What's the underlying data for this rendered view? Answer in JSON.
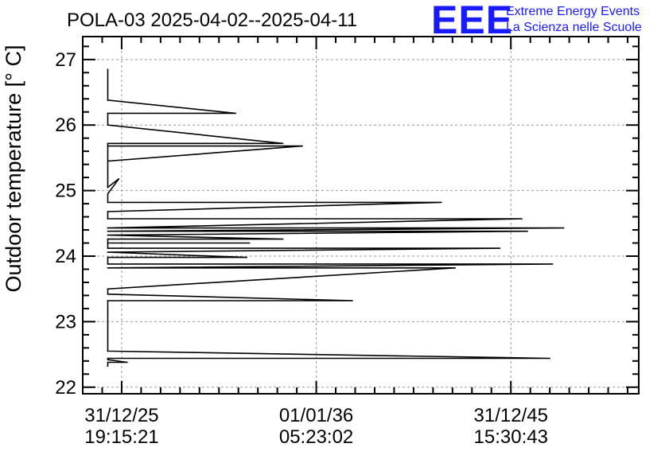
{
  "chart_data": {
    "type": "line",
    "title": "POLA-03 2025-04-02--2025-04-11",
    "logo": {
      "mark": "EEE",
      "line1": "Extreme Energy Events",
      "line2": "La Scienza nelle Scuole"
    },
    "ylabel": "Outdoor temperature [° C]",
    "xlabel": "",
    "ylim": [
      21.9,
      27.35
    ],
    "xlim": [
      0,
      100
    ],
    "yticks": [
      "22",
      "23",
      "24",
      "25",
      "26",
      "27"
    ],
    "xticks": [
      {
        "x": 7,
        "line1": "31/12/25",
        "line2": "19:15:21"
      },
      {
        "x": 42,
        "line1": "01/01/36",
        "line2": "05:23:02"
      },
      {
        "x": 77,
        "line1": "31/12/45",
        "line2": "15:30:43"
      }
    ],
    "grid": true,
    "colors": {
      "series": "#000000",
      "grid": "#999999",
      "logo": "#1a1aff"
    },
    "series": [
      {
        "name": "temperature",
        "x": [
          4.5,
          4.5,
          4.5,
          27.5,
          4.5,
          4.5,
          36,
          4.5,
          4.5,
          39.5,
          4.5,
          4.5,
          6.5,
          4.5,
          4.5,
          64.5,
          4.5,
          4.5,
          79,
          4.5,
          4.5,
          86.5,
          4.5,
          4.5,
          80,
          4.5,
          4.5,
          36,
          4.5,
          4.5,
          30,
          4.5,
          4.5,
          75,
          4.5,
          4.5,
          29.5,
          4.5,
          4.5,
          84.5,
          4.5,
          4.5,
          67,
          4.5,
          4.5,
          48.5,
          4.5,
          4.5,
          84,
          4.5,
          4.5,
          8,
          4.5,
          4.5
        ],
        "y": [
          26.85,
          26.38,
          26.38,
          26.18,
          26.18,
          26.0,
          25.72,
          25.72,
          25.45,
          25.68,
          25.68,
          25.05,
          25.18,
          24.95,
          24.82,
          24.82,
          24.68,
          24.57,
          24.57,
          24.43,
          24.43,
          24.43,
          24.38,
          24.38,
          24.38,
          24.32,
          24.32,
          24.26,
          24.26,
          24.2,
          24.2,
          24.2,
          24.12,
          24.12,
          24.06,
          24.06,
          23.98,
          23.98,
          23.88,
          23.88,
          23.82,
          23.82,
          23.82,
          23.5,
          23.42,
          23.32,
          23.32,
          22.55,
          22.44,
          22.44,
          22.42,
          22.38,
          22.38,
          22.32
        ]
      }
    ]
  }
}
